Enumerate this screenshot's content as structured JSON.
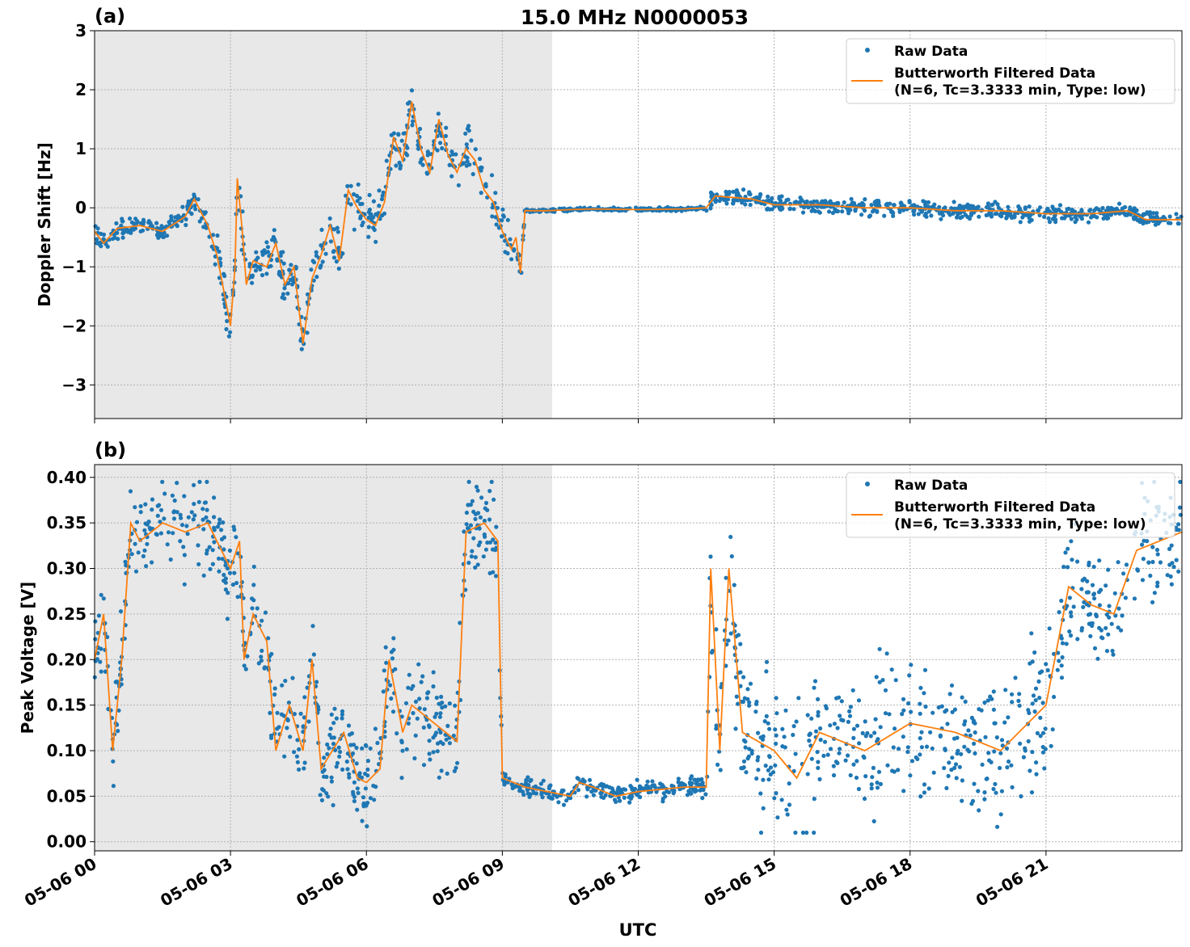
{
  "title": "15.0 MHz N0000053",
  "colors": {
    "raw": "#1f77b4",
    "filtered": "#ff7f0e",
    "shade": "#e8e8e8",
    "grid": "#b0b0b0"
  },
  "xlabel": "UTC",
  "x_ticks": {
    "hours": [
      0,
      3,
      6,
      9,
      12,
      15,
      18,
      21
    ],
    "labels": [
      "05-06 00",
      "05-06 03",
      "05-06 06",
      "05-06 09",
      "05-06 12",
      "05-06 15",
      "05-06 18",
      "05-06 21"
    ]
  },
  "xlim_hours": [
    0,
    24
  ],
  "shaded_region_hours": [
    0,
    10.1
  ],
  "legend": {
    "raw": "Raw Data",
    "filtered_line1": "Butterworth Filtered Data",
    "filtered_line2": "(N=6, Tc=3.3333 min, Type: low)",
    "placement": "top-right"
  },
  "chart_data": [
    {
      "type": "scatter+line",
      "panel_label": "(a)",
      "ylabel": "Doppler Shift [Hz]",
      "ylim": [
        -3.57,
        3.0
      ],
      "grid": true,
      "y_ticks": [
        -3,
        -2,
        -1,
        0,
        1,
        2,
        3
      ],
      "y_tick_labels": [
        "−3",
        "−2",
        "−1",
        "0",
        "1",
        "2",
        "3"
      ],
      "filtered": {
        "x": [
          0,
          0.2,
          0.5,
          1,
          1.5,
          2,
          2.2,
          2.5,
          2.7,
          2.9,
          3.0,
          3.1,
          3.15,
          3.25,
          3.35,
          3.5,
          3.8,
          4.0,
          4.2,
          4.4,
          4.6,
          4.8,
          5.0,
          5.2,
          5.4,
          5.6,
          5.8,
          6.0,
          6.2,
          6.4,
          6.6,
          6.8,
          7.0,
          7.2,
          7.4,
          7.6,
          7.8,
          8.0,
          8.2,
          8.4,
          8.6,
          8.8,
          9.0,
          9.2,
          9.3,
          9.4,
          9.5,
          10,
          10.5,
          11,
          12,
          13,
          13.5,
          13.7,
          14.5,
          15,
          16,
          17,
          18,
          19,
          20,
          21,
          22,
          22.8,
          23.2,
          24
        ],
        "y": [
          -0.4,
          -0.6,
          -0.35,
          -0.3,
          -0.4,
          -0.15,
          0.15,
          -0.3,
          -0.8,
          -1.6,
          -2.0,
          -1.0,
          0.5,
          -0.3,
          -1.3,
          -0.9,
          -1.0,
          -0.6,
          -1.3,
          -1.0,
          -2.3,
          -1.2,
          -0.8,
          -0.3,
          -0.9,
          0.3,
          0.0,
          -0.2,
          -0.3,
          0.1,
          1.2,
          0.8,
          1.8,
          1.0,
          0.6,
          1.5,
          0.9,
          0.6,
          1.0,
          0.8,
          0.3,
          0.1,
          -0.4,
          -0.7,
          -0.5,
          -1.1,
          -0.05,
          -0.05,
          -0.03,
          -0.02,
          -0.03,
          -0.02,
          0.0,
          0.2,
          0.15,
          0.05,
          0.05,
          0.0,
          0.0,
          -0.05,
          -0.05,
          -0.1,
          -0.1,
          -0.05,
          -0.2,
          -0.2
        ]
      },
      "raw_spread": [
        {
          "from": 0,
          "to": 2.5,
          "halfwidth": 0.2
        },
        {
          "from": 2.5,
          "to": 9.45,
          "halfwidth": 0.45
        },
        {
          "from": 9.45,
          "to": 13.5,
          "halfwidth": 0.03
        },
        {
          "from": 13.5,
          "to": 24,
          "halfwidth": 0.15
        }
      ],
      "raw_clip": [
        -3.3,
        2.7
      ]
    },
    {
      "type": "scatter+line",
      "panel_label": "(b)",
      "ylabel": "Peak Voltage [V]",
      "ylim": [
        -0.01,
        0.414
      ],
      "grid": true,
      "y_ticks": [
        0,
        0.05,
        0.1,
        0.15,
        0.2,
        0.25,
        0.3,
        0.35,
        0.4
      ],
      "y_tick_labels": [
        "0.00",
        "0.05",
        "0.10",
        "0.15",
        "0.20",
        "0.25",
        "0.30",
        "0.35",
        "0.40"
      ],
      "filtered": {
        "x": [
          0,
          0.2,
          0.4,
          0.6,
          0.8,
          1,
          1.5,
          2,
          2.5,
          3,
          3.2,
          3.3,
          3.5,
          3.8,
          4.0,
          4.3,
          4.6,
          4.8,
          5.0,
          5.5,
          5.8,
          6.0,
          6.3,
          6.5,
          6.8,
          7.0,
          7.5,
          8.0,
          8.2,
          8.6,
          8.9,
          9.0,
          9.5,
          10,
          10.5,
          10.7,
          11,
          11.5,
          12,
          13,
          13.5,
          13.6,
          13.8,
          14,
          14.3,
          15,
          15.5,
          16,
          17,
          18,
          19,
          20,
          21,
          21.5,
          22,
          22.5,
          23,
          23.5,
          24
        ],
        "y": [
          0.2,
          0.25,
          0.1,
          0.2,
          0.35,
          0.33,
          0.35,
          0.34,
          0.35,
          0.3,
          0.33,
          0.2,
          0.25,
          0.22,
          0.1,
          0.15,
          0.1,
          0.2,
          0.08,
          0.12,
          0.07,
          0.065,
          0.08,
          0.2,
          0.12,
          0.15,
          0.13,
          0.11,
          0.34,
          0.35,
          0.33,
          0.07,
          0.06,
          0.055,
          0.05,
          0.065,
          0.06,
          0.05,
          0.055,
          0.06,
          0.06,
          0.3,
          0.1,
          0.3,
          0.12,
          0.1,
          0.07,
          0.12,
          0.1,
          0.13,
          0.12,
          0.1,
          0.15,
          0.28,
          0.26,
          0.25,
          0.32,
          0.33,
          0.34
        ]
      },
      "raw_spread": [
        {
          "from": 0,
          "to": 9,
          "halfwidth": 0.06
        },
        {
          "from": 9,
          "to": 13.5,
          "halfwidth": 0.012
        },
        {
          "from": 13.5,
          "to": 21.5,
          "halfwidth": 0.09
        },
        {
          "from": 21.5,
          "to": 24,
          "halfwidth": 0.07
        }
      ],
      "raw_clip": [
        0.01,
        0.395
      ]
    }
  ]
}
